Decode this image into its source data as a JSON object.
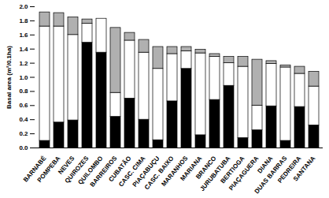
{
  "chart_data": {
    "type": "bar",
    "stacked": true,
    "y_label": "Basal area (m²/0.1ha)",
    "categories": [
      "BARNABÉ",
      "POMPEBA",
      "NEVES",
      "QUIROZES",
      "QUILOMBO",
      "BARREIROS",
      "CUBATÃO",
      "CASC. CIMA",
      "PIAÇABUÇU",
      "CASC. BAIXO",
      "MARANHOS",
      "MARIANA",
      "BRANCO",
      "JURUBATUBA",
      "BERTIOGA",
      "PIAÇAGUERA",
      "DIANA",
      "DUAS BARRAS",
      "PEDREIRA",
      "SANTANA"
    ],
    "series": [
      {
        "color": "#000000",
        "values": [
          0.1,
          0.36,
          0.39,
          1.49,
          1.35,
          0.44,
          0.7,
          0.4,
          0.11,
          0.66,
          1.12,
          0.18,
          0.68,
          0.88,
          0.14,
          0.25,
          0.59,
          0.1,
          0.58,
          0.32
        ]
      },
      {
        "color": "#ffffff",
        "values": [
          1.62,
          1.36,
          1.21,
          0.27,
          0.48,
          0.34,
          0.82,
          0.95,
          1.01,
          0.67,
          0.25,
          1.16,
          0.61,
          0.32,
          1.01,
          0.35,
          0.6,
          1.04,
          0.47,
          0.55
        ]
      },
      {
        "color": "#b0b0b0",
        "values": [
          0.2,
          0.19,
          0.25,
          0.06,
          0.0,
          0.92,
          0.11,
          0.18,
          0.31,
          0.1,
          0.06,
          0.05,
          0.04,
          0.09,
          0.14,
          0.65,
          0.04,
          0.03,
          0.1,
          0.21
        ]
      }
    ],
    "ylim": [
      0,
      2.0
    ],
    "yticks": [
      {
        "value": 0,
        "label": "0.0"
      },
      {
        "value": 0.2,
        "label": "0.2"
      },
      {
        "value": 0.4,
        "label": "0.4"
      },
      {
        "value": 0.6,
        "label": "0.6"
      },
      {
        "value": 0.8,
        "label": "0.8"
      },
      {
        "value": 1.0,
        "label": "1.0"
      },
      {
        "value": 1.2,
        "label": "1.2"
      },
      {
        "value": 1.4,
        "label": "1.4"
      },
      {
        "value": 1.6,
        "label": "1.6"
      },
      {
        "value": 1.8,
        "label": "1.8"
      },
      {
        "value": 2.0,
        "label": "2.0"
      }
    ],
    "grid": false
  }
}
